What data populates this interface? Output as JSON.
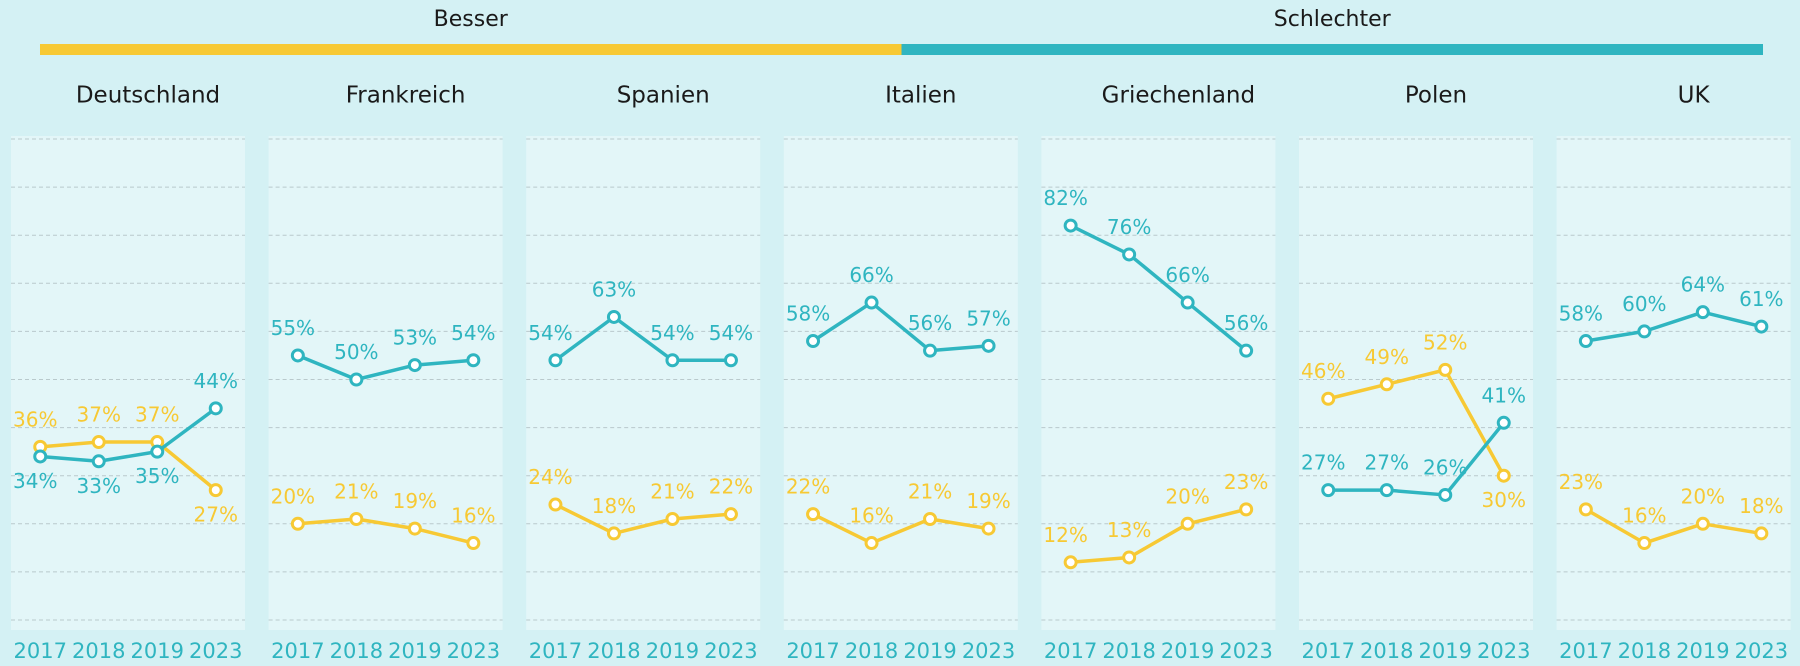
{
  "legend": [
    {
      "label": "Besser",
      "color": "#f7c934"
    },
    {
      "label": "Schlechter",
      "color": "#2fb5c0"
    }
  ],
  "chart_data": [
    {
      "type": "line",
      "title": "Deutschland",
      "categories": [
        "2017",
        "2018",
        "2019",
        "2023"
      ],
      "ylim": [
        0,
        100
      ],
      "yticks": [
        0,
        10,
        20,
        30,
        40,
        50,
        60,
        70,
        80,
        90,
        100
      ],
      "grid": true,
      "series": [
        {
          "color": "#f7c934",
          "values": [
            36,
            37,
            37,
            27
          ],
          "value_labels": [
            "36%",
            "37%",
            "37%",
            "27%"
          ]
        },
        {
          "color": "#2fb5c0",
          "values": [
            34,
            33,
            35,
            44
          ],
          "value_labels": [
            "34%",
            "33%",
            "35%",
            "44%"
          ]
        }
      ]
    },
    {
      "type": "line",
      "title": "Frankreich",
      "categories": [
        "2017",
        "2018",
        "2019",
        "2023"
      ],
      "ylim": [
        0,
        100
      ],
      "yticks": [
        0,
        10,
        20,
        30,
        40,
        50,
        60,
        70,
        80,
        90,
        100
      ],
      "grid": true,
      "series": [
        {
          "color": "#f7c934",
          "values": [
            20,
            21,
            19,
            16
          ],
          "value_labels": [
            "20%",
            "21%",
            "19%",
            "16%"
          ]
        },
        {
          "color": "#2fb5c0",
          "values": [
            55,
            50,
            53,
            54
          ],
          "value_labels": [
            "55%",
            "50%",
            "53%",
            "54%"
          ]
        }
      ]
    },
    {
      "type": "line",
      "title": "Spanien",
      "categories": [
        "2017",
        "2018",
        "2019",
        "2023"
      ],
      "ylim": [
        0,
        100
      ],
      "yticks": [
        0,
        10,
        20,
        30,
        40,
        50,
        60,
        70,
        80,
        90,
        100
      ],
      "grid": true,
      "series": [
        {
          "color": "#f7c934",
          "values": [
            24,
            18,
            21,
            22
          ],
          "value_labels": [
            "24%",
            "18%",
            "21%",
            "22%"
          ]
        },
        {
          "color": "#2fb5c0",
          "values": [
            54,
            63,
            54,
            54
          ],
          "value_labels": [
            "54%",
            "63%",
            "54%",
            "54%"
          ]
        }
      ]
    },
    {
      "type": "line",
      "title": "Italien",
      "categories": [
        "2017",
        "2018",
        "2019",
        "2023"
      ],
      "ylim": [
        0,
        100
      ],
      "yticks": [
        0,
        10,
        20,
        30,
        40,
        50,
        60,
        70,
        80,
        90,
        100
      ],
      "grid": true,
      "series": [
        {
          "color": "#f7c934",
          "values": [
            22,
            16,
            21,
            19
          ],
          "value_labels": [
            "22%",
            "16%",
            "21%",
            "19%"
          ]
        },
        {
          "color": "#2fb5c0",
          "values": [
            58,
            66,
            56,
            57
          ],
          "value_labels": [
            "58%",
            "66%",
            "56%",
            "57%"
          ]
        }
      ]
    },
    {
      "type": "line",
      "title": "Griechenland",
      "categories": [
        "2017",
        "2018",
        "2019",
        "2023"
      ],
      "ylim": [
        0,
        100
      ],
      "yticks": [
        0,
        10,
        20,
        30,
        40,
        50,
        60,
        70,
        80,
        90,
        100
      ],
      "grid": true,
      "series": [
        {
          "color": "#f7c934",
          "values": [
            12,
            13,
            20,
            23
          ],
          "value_labels": [
            "12%",
            "13%",
            "20%",
            "23%"
          ]
        },
        {
          "color": "#2fb5c0",
          "values": [
            82,
            76,
            66,
            56
          ],
          "value_labels": [
            "82%",
            "76%",
            "66%",
            "56%"
          ]
        }
      ]
    },
    {
      "type": "line",
      "title": "Polen",
      "categories": [
        "2017",
        "2018",
        "2019",
        "2023"
      ],
      "ylim": [
        0,
        100
      ],
      "yticks": [
        0,
        10,
        20,
        30,
        40,
        50,
        60,
        70,
        80,
        90,
        100
      ],
      "grid": true,
      "series": [
        {
          "color": "#f7c934",
          "values": [
            46,
            49,
            52,
            30
          ],
          "value_labels": [
            "46%",
            "49%",
            "52%",
            "30%"
          ]
        },
        {
          "color": "#2fb5c0",
          "values": [
            27,
            27,
            26,
            41
          ],
          "value_labels": [
            "27%",
            "27%",
            "26%",
            "41%"
          ]
        }
      ]
    },
    {
      "type": "line",
      "title": "UK",
      "categories": [
        "2017",
        "2018",
        "2019",
        "2023"
      ],
      "ylim": [
        0,
        100
      ],
      "yticks": [
        0,
        10,
        20,
        30,
        40,
        50,
        60,
        70,
        80,
        90,
        100
      ],
      "grid": true,
      "series": [
        {
          "color": "#f7c934",
          "values": [
            23,
            16,
            20,
            18
          ],
          "value_labels": [
            "23%",
            "16%",
            "20%",
            "18%"
          ]
        },
        {
          "color": "#2fb5c0",
          "values": [
            58,
            60,
            64,
            61
          ],
          "value_labels": [
            "58%",
            "60%",
            "64%",
            "61%"
          ]
        }
      ]
    }
  ]
}
